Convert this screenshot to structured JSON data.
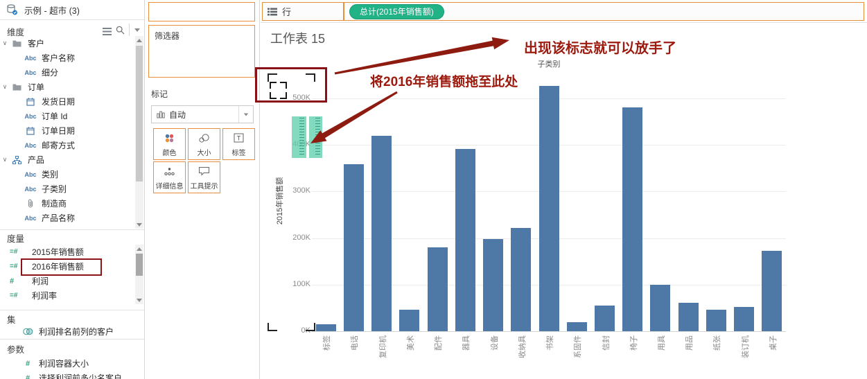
{
  "colors": {
    "accent_orange": "#e78f3c",
    "pill_green": "#21b286",
    "bar_blue": "#4e79a7",
    "annotation_red": "#9c1a0e",
    "highlight_red": "#8a1418",
    "icon_blue": "#4878a8",
    "icon_green": "#2f9e7d"
  },
  "datasource": {
    "name": "示例 - 超市 (3)"
  },
  "dimensions": {
    "title": "维度",
    "items": [
      {
        "caret": true,
        "icon": "folder",
        "label": "客户",
        "indent": 0
      },
      {
        "caret": false,
        "icon": "abc",
        "label": "客户名称",
        "indent": 1
      },
      {
        "caret": false,
        "icon": "abc",
        "label": "细分",
        "indent": 1
      },
      {
        "caret": true,
        "icon": "folder",
        "label": "订单",
        "indent": 0
      },
      {
        "caret": false,
        "icon": "calendar",
        "label": "发货日期",
        "indent": 1
      },
      {
        "caret": false,
        "icon": "abc",
        "label": "订单 Id",
        "indent": 1
      },
      {
        "caret": false,
        "icon": "calendar",
        "label": "订单日期",
        "indent": 1
      },
      {
        "caret": false,
        "icon": "abc",
        "label": "邮寄方式",
        "indent": 1
      },
      {
        "caret": true,
        "icon": "hierarchy",
        "label": "产品",
        "indent": 0
      },
      {
        "caret": false,
        "icon": "abc",
        "label": "类别",
        "indent": 1
      },
      {
        "caret": false,
        "icon": "abc",
        "label": "子类别",
        "indent": 1
      },
      {
        "caret": false,
        "icon": "clip",
        "label": "制造商",
        "indent": 1
      },
      {
        "caret": false,
        "icon": "abc",
        "label": "产品名称",
        "indent": 1
      }
    ]
  },
  "measures": {
    "title": "度量",
    "items": [
      {
        "icon": "eqhash",
        "label": "2015年销售额",
        "highlight": false
      },
      {
        "icon": "eqhash",
        "label": "2016年销售额",
        "highlight": true
      },
      {
        "icon": "hash",
        "label": "利润",
        "highlight": false
      },
      {
        "icon": "eqhash",
        "label": "利润率",
        "highlight": false
      }
    ]
  },
  "sets": {
    "title": "集",
    "items": [
      {
        "icon": "venn",
        "label": "利润排名前列的客户"
      }
    ]
  },
  "parameters": {
    "title": "参数",
    "items": [
      {
        "icon": "hash",
        "label": "利润容器大小"
      },
      {
        "icon": "hash",
        "label": "选择利润前多少名客户"
      }
    ]
  },
  "cards": {
    "filters_label": "筛选器",
    "marks_label": "标记",
    "mark_type": "自动",
    "buttons": [
      {
        "icon": "color",
        "label": "颜色"
      },
      {
        "icon": "size",
        "label": "大小"
      },
      {
        "icon": "labelT",
        "label": "标签"
      },
      {
        "icon": "detail",
        "label": "详细信息"
      },
      {
        "icon": "tooltip",
        "label": "工具提示"
      }
    ]
  },
  "shelf": {
    "rows_label": "行",
    "pill_label": "总计(2015年销售额)"
  },
  "annotations": {
    "drag_hint": "将2016年销售额拖至此处",
    "release_hint": "出现该标志就可以放手了"
  },
  "chart_data": {
    "type": "bar",
    "title": "工作表 15",
    "column_header": "子类别",
    "ylabel": "2015年销售额",
    "unit": "K",
    "categories": [
      "标签",
      "电话",
      "复印机",
      "美术",
      "配件",
      "器具",
      "设备",
      "收纳具",
      "书架",
      "系固件",
      "信封",
      "椅子",
      "用具",
      "用品",
      "纸张",
      "装订机",
      "桌子"
    ],
    "values": [
      15,
      359,
      420,
      46,
      180,
      392,
      198,
      221,
      527,
      20,
      55,
      481,
      100,
      61,
      46,
      52,
      173
    ],
    "yticks": [
      0,
      100,
      200,
      300,
      400,
      500
    ],
    "ylim": [
      0,
      520
    ],
    "grid": true,
    "legend": "none",
    "bar_color": "#4e79a7"
  }
}
